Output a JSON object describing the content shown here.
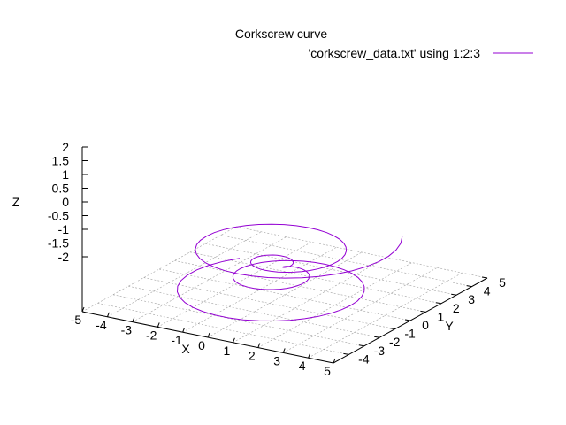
{
  "chart_data": {
    "type": "line3d",
    "title": "Corkscrew curve",
    "xlabel": "X",
    "ylabel": "Y",
    "zlabel": "Z",
    "xlim": [
      -5,
      5
    ],
    "ylim": [
      -5,
      5
    ],
    "zlim": [
      -2,
      2
    ],
    "x_ticks": [
      "-5",
      "-4",
      "-3",
      "-2",
      "-1",
      "0",
      "1",
      "2",
      "3",
      "4",
      "5"
    ],
    "y_ticks": [
      "-4",
      "-3",
      "-2",
      "-1",
      "0",
      "1",
      "2",
      "3",
      "4",
      "5"
    ],
    "z_ticks": [
      "2",
      "1.5",
      "1",
      "0.5",
      "0",
      "-0.5",
      "-1",
      "-1.5",
      "-2"
    ],
    "grid": true,
    "legend_position": "top-right",
    "series": [
      {
        "name": "'corkscrew_data.txt' using 1:2:3",
        "color": "#9400d3",
        "curve": "conical helix: x = r*cos(t), y = r*sin(t), z = r/2, r from 0 (center) up to 4 at each end",
        "r_range": [
          -4,
          4
        ],
        "turns_per_side": 2.1
      }
    ]
  }
}
